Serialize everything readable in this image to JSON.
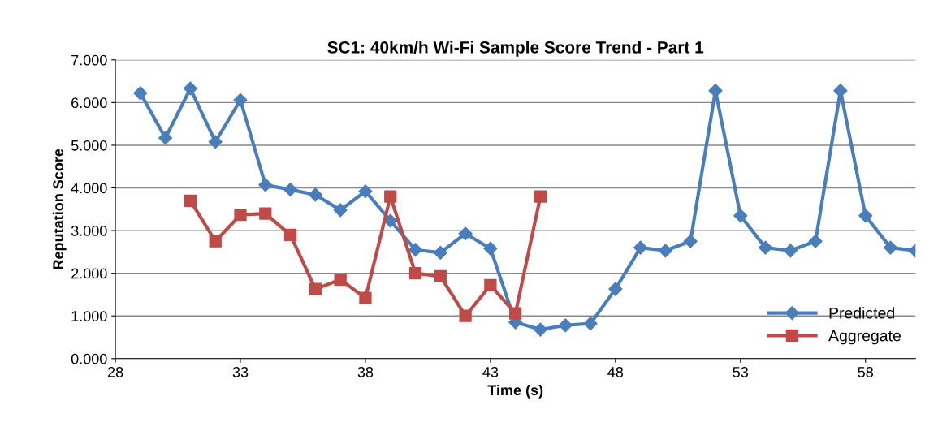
{
  "chart_data": {
    "type": "line",
    "title": "SC1: 40km/h Wi-Fi Sample Score Trend - Part 1",
    "xlabel": "Time (s)",
    "ylabel": "Reputation Score",
    "series": [
      {
        "name": "Predicted",
        "color": "#4a7ebb",
        "marker": "diamond",
        "x": [
          29,
          30,
          31,
          32,
          33,
          34,
          35,
          36,
          37,
          38,
          39,
          40,
          41,
          42,
          43,
          44,
          45,
          46,
          47,
          48,
          49,
          50,
          51,
          52,
          53,
          54,
          55,
          56,
          57,
          58,
          59,
          60
        ],
        "values": [
          6.22,
          5.17,
          6.33,
          5.08,
          6.06,
          4.07,
          3.96,
          3.84,
          3.48,
          3.92,
          3.23,
          2.55,
          2.48,
          2.93,
          2.58,
          0.85,
          0.68,
          0.78,
          0.82,
          1.63,
          2.6,
          2.53,
          2.75,
          6.28,
          3.35,
          2.6,
          2.53,
          2.75,
          6.28,
          3.35,
          2.6,
          2.53
        ]
      },
      {
        "name": "Aggregate",
        "color": "#be4b48",
        "marker": "square",
        "x": [
          31,
          32,
          33,
          34,
          35,
          36,
          37,
          38,
          39,
          40,
          41,
          42,
          43,
          44,
          45
        ],
        "values": [
          3.7,
          2.75,
          3.37,
          3.4,
          2.9,
          1.63,
          1.85,
          1.42,
          3.8,
          2.0,
          1.93,
          1.0,
          1.72,
          1.06,
          3.8
        ]
      }
    ],
    "xlim": [
      28,
      60
    ],
    "xticks": [
      28,
      33,
      38,
      43,
      48,
      53,
      58
    ],
    "ylim": [
      0,
      7
    ],
    "yticks": [
      {
        "value": 0,
        "label": "0.000"
      },
      {
        "value": 1,
        "label": "1.000"
      },
      {
        "value": 2,
        "label": "2.000"
      },
      {
        "value": 3,
        "label": "3.000"
      },
      {
        "value": 4,
        "label": "4.000"
      },
      {
        "value": 5,
        "label": "5.000"
      },
      {
        "value": 6,
        "label": "6.000"
      },
      {
        "value": 7,
        "label": "7.000"
      }
    ],
    "grid": "y",
    "legend": "lower right",
    "line_style": "solid"
  }
}
